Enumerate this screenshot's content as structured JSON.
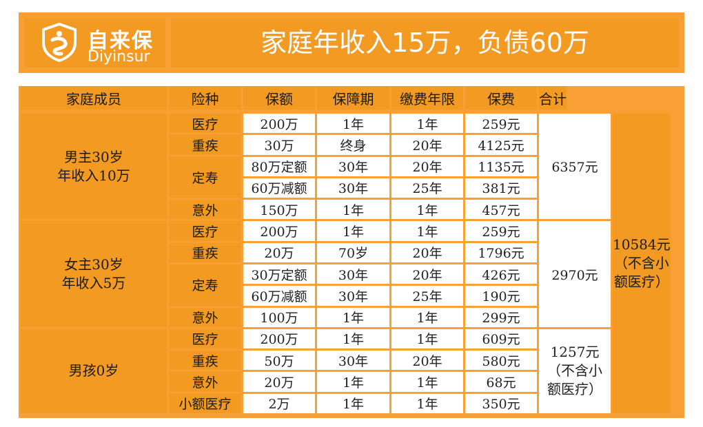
{
  "header": {
    "logo_cn": "自来保",
    "logo_en": "Diyinsur",
    "title": "家庭年收入15万，负债60万"
  },
  "columns": [
    "家庭成员",
    "险种",
    "保额",
    "保障期",
    "缴费年限",
    "保费",
    "合计"
  ],
  "members": [
    {
      "name_line1": "男主30岁",
      "name_line2": "年收入10万",
      "subtotal": "6357元"
    },
    {
      "name_line1": "女主30岁",
      "name_line2": "年收入5万",
      "subtotal": "2970元"
    },
    {
      "name_line1": "男孩0岁",
      "subtotal_line1": "1257元",
      "subtotal_line2": "（不含小",
      "subtotal_line3": "额医疗）"
    }
  ],
  "grand_total": {
    "line1": "10584元",
    "line2": "（不含小",
    "line3": "额医疗）"
  },
  "rows": [
    {
      "type": "医疗",
      "amount": "200万",
      "period": "1年",
      "pay_years": "1年",
      "premium": "259元"
    },
    {
      "type": "重疾",
      "amount": "30万",
      "period": "终身",
      "pay_years": "20年",
      "premium": "4125元"
    },
    {
      "type": "定寿",
      "amount": "80万定额",
      "period": "30年",
      "pay_years": "20年",
      "premium": "1135元"
    },
    {
      "type": "",
      "amount": "60万减额",
      "period": "30年",
      "pay_years": "25年",
      "premium": "381元"
    },
    {
      "type": "意外",
      "amount": "150万",
      "period": "1年",
      "pay_years": "1年",
      "premium": "457元"
    },
    {
      "type": "医疗",
      "amount": "200万",
      "period": "1年",
      "pay_years": "1年",
      "premium": "259元"
    },
    {
      "type": "重疾",
      "amount": "20万",
      "period": "70岁",
      "pay_years": "20年",
      "premium": "1796元"
    },
    {
      "type": "定寿",
      "amount": "30万定额",
      "period": "30年",
      "pay_years": "20年",
      "premium": "426元"
    },
    {
      "type": "",
      "amount": "60万减额",
      "period": "30年",
      "pay_years": "25年",
      "premium": "190元"
    },
    {
      "type": "意外",
      "amount": "100万",
      "period": "1年",
      "pay_years": "1年",
      "premium": "299元"
    },
    {
      "type": "医疗",
      "amount": "200万",
      "period": "1年",
      "pay_years": "1年",
      "premium": "609元"
    },
    {
      "type": "重疾",
      "amount": "50万",
      "period": "30年",
      "pay_years": "20年",
      "premium": "580元"
    },
    {
      "type": "意外",
      "amount": "20万",
      "period": "1年",
      "pay_years": "1年",
      "premium": "68元"
    },
    {
      "type": "小额医疗",
      "amount": "2万",
      "period": "1年",
      "pay_years": "1年",
      "premium": "350元"
    }
  ]
}
